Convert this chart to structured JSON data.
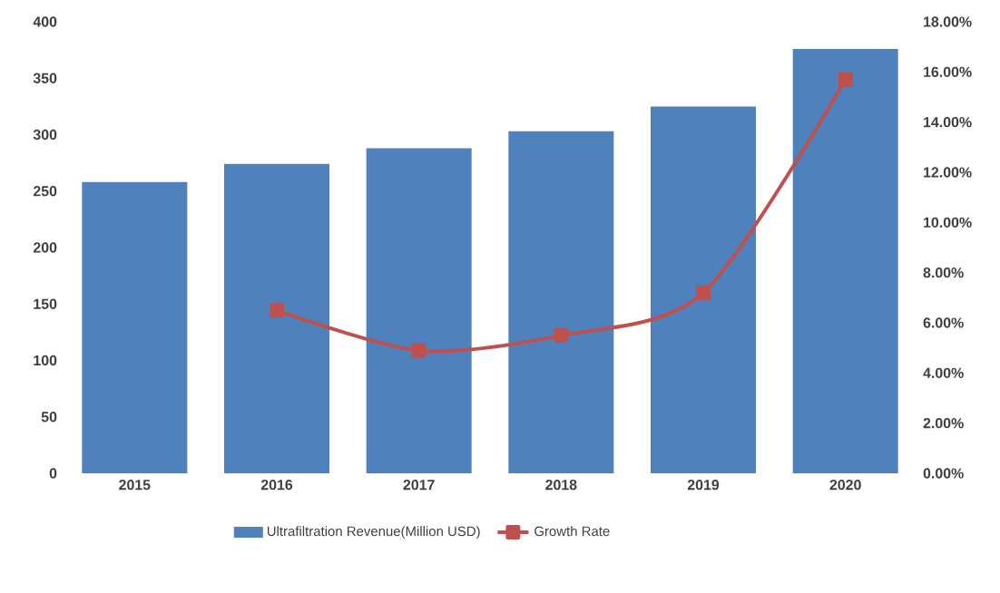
{
  "chart_data": {
    "type": "bar",
    "categories": [
      "2015",
      "2016",
      "2017",
      "2018",
      "2019",
      "2020"
    ],
    "series": [
      {
        "name": "Ultrafiltration Revenue(Million USD)",
        "color": "#4f81bd",
        "values": [
          258,
          274,
          288,
          303,
          325,
          376
        ]
      },
      {
        "name": "Growth Rate",
        "color": "#c0504d",
        "type": "line",
        "axis": "y2",
        "marker": "square",
        "values": [
          null,
          6.5,
          4.9,
          5.5,
          7.2,
          15.7
        ]
      }
    ],
    "ylim": [
      0,
      400
    ],
    "yticks": [
      0,
      50,
      100,
      150,
      200,
      250,
      300,
      350,
      400
    ],
    "y2lim": [
      0,
      18
    ],
    "y2ticks": [
      {
        "value": 0,
        "label": "0.00%"
      },
      {
        "value": 2,
        "label": "2.00%"
      },
      {
        "value": 4,
        "label": "4.00%"
      },
      {
        "value": 6,
        "label": "6.00%"
      },
      {
        "value": 8,
        "label": "8.00%"
      },
      {
        "value": 10,
        "label": "10.00%"
      },
      {
        "value": 12,
        "label": "12.00%"
      },
      {
        "value": 14,
        "label": "14.00%"
      },
      {
        "value": 16,
        "label": "16.00%"
      },
      {
        "value": 18,
        "label": "18.00%"
      }
    ],
    "legend": "bottom"
  }
}
